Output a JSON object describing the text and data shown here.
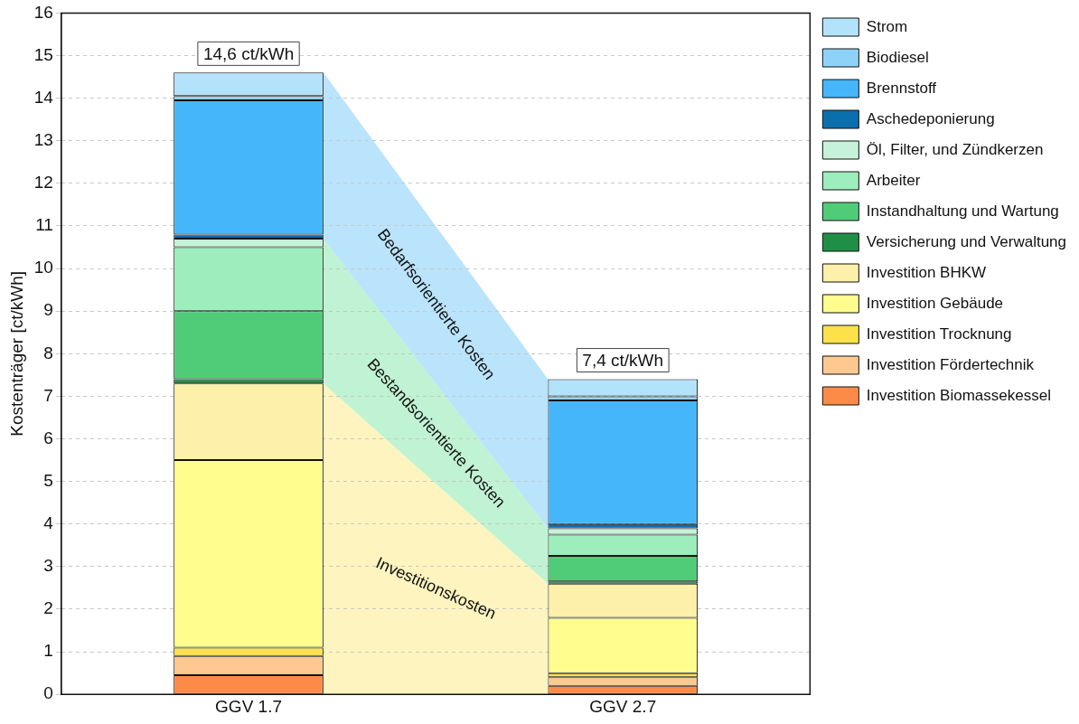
{
  "chart_data": {
    "type": "bar",
    "stacked": true,
    "ylabel": "Kostenträger [ct/kWh]",
    "categories": [
      "GGV 1.7",
      "GGV 2.7"
    ],
    "series": [
      {
        "name": "Investition Biomassekessel",
        "color": "#fd8b48",
        "values": [
          0.45,
          0.2
        ]
      },
      {
        "name": "Investition Fördertechnik",
        "color": "#fdc990",
        "values": [
          0.45,
          0.2
        ]
      },
      {
        "name": "Investition Trocknung",
        "color": "#fde14a",
        "values": [
          0.2,
          0.1
        ]
      },
      {
        "name": "Investition Gebäude",
        "color": "#fefd8e",
        "values": [
          4.4,
          1.3
        ]
      },
      {
        "name": "Investition BHKW",
        "color": "#fdf0aa",
        "values": [
          1.8,
          0.8
        ]
      },
      {
        "name": "Versicherung und Verwaltung",
        "color": "#1f8f46",
        "values": [
          0.1,
          0.05
        ]
      },
      {
        "name": "Instandhaltung und Wartung",
        "color": "#50cc78",
        "values": [
          1.6,
          0.6
        ]
      },
      {
        "name": "Arbeiter",
        "color": "#9eedbc",
        "values": [
          1.5,
          0.5
        ]
      },
      {
        "name": "Öl, Filter, und Zündkerzen",
        "color": "#c6f2d9",
        "values": [
          0.2,
          0.15
        ]
      },
      {
        "name": "Aschedeponierung",
        "color": "#0b6fae",
        "values": [
          0.1,
          0.1
        ]
      },
      {
        "name": "Brennstoff",
        "color": "#45b6fa",
        "values": [
          3.15,
          2.9
        ]
      },
      {
        "name": "Biodiesel",
        "color": "#8ed3f7",
        "values": [
          0.1,
          0.1
        ]
      },
      {
        "name": "Strom",
        "color": "#b3e3fb",
        "values": [
          0.55,
          0.4
        ]
      }
    ],
    "totals": [
      "14,6 ct/kWh",
      "7,4 ct/kWh"
    ],
    "annotations": [
      "Investitionskosten",
      "Bestandsorientierte Kosten",
      "Bedarfsorientierte Kosten"
    ],
    "ylim": [
      0,
      16
    ],
    "yticks": [
      0,
      1,
      2,
      3,
      4,
      5,
      6,
      7,
      8,
      9,
      10,
      11,
      12,
      13,
      14,
      15,
      16
    ],
    "grid": "y",
    "legend": "right"
  }
}
